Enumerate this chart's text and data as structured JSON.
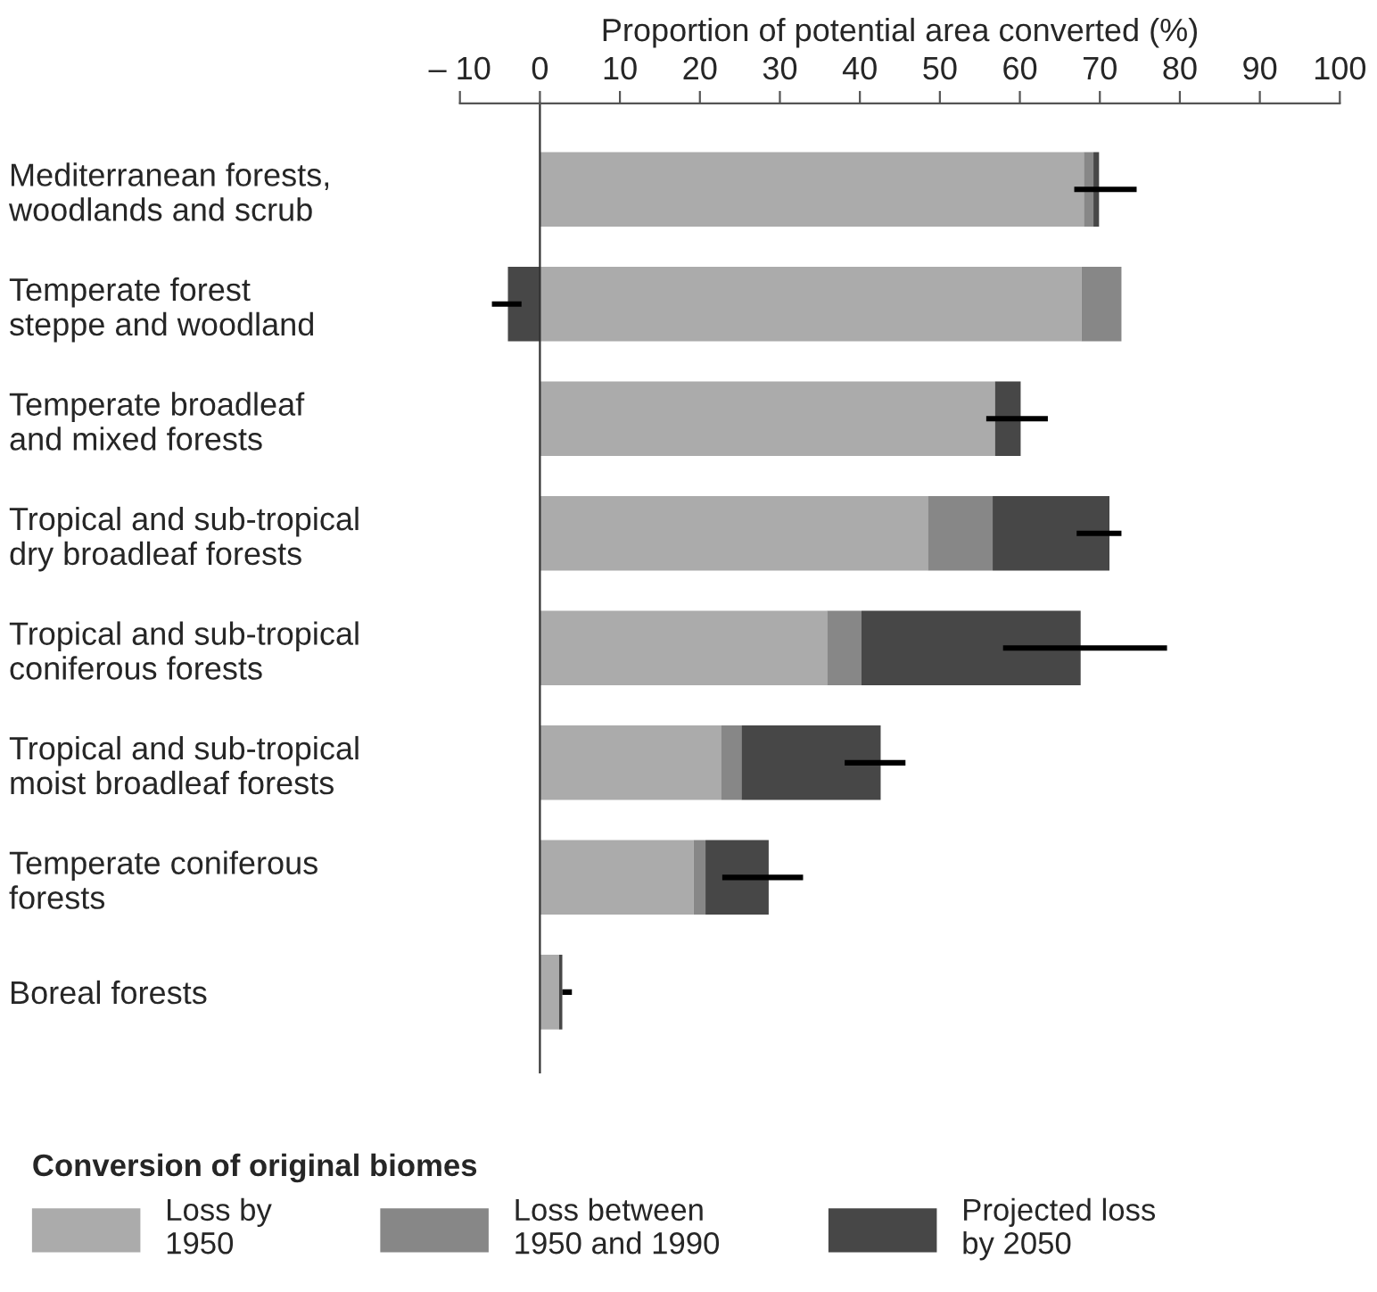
{
  "chart_data": {
    "type": "bar",
    "orientation": "horizontal",
    "stacked": true,
    "xlabel": "Proportion of potential area converted (%)",
    "legend_title": "Conversion of original biomes",
    "categories": [
      "Mediterranean forests,\nwoodlands and scrub",
      "Temperate forest\nsteppe and woodland",
      "Temperate broadleaf\nand mixed forests",
      "Tropical and sub-tropical\ndry broadleaf forests",
      "Tropical and sub-tropical\nconiferous forests",
      "Tropical and sub-tropical\nmoist broadleaf forests",
      "Temperate coniferous\nforests",
      "Boreal forests"
    ],
    "series": [
      {
        "name": "Loss by\n1950",
        "color": "#ababab",
        "values": [
          68.0,
          67.7,
          56.9,
          48.5,
          35.9,
          22.7,
          19.2,
          2.4
        ]
      },
      {
        "name": "Loss between\n1950 and 1990",
        "color": "#878787",
        "values": [
          1.2,
          5.0,
          0,
          8.1,
          4.3,
          2.5,
          1.5,
          0
        ]
      },
      {
        "name": "Projected loss\nby 2050",
        "color": "#474747",
        "values": [
          0.7,
          -4.0,
          3.2,
          14.6,
          27.4,
          17.4,
          7.9,
          0.4
        ],
        "errors": [
          [
            66.8,
            74.6
          ],
          [
            -6.0,
            -2.3
          ],
          [
            55.8,
            63.5
          ],
          [
            67.1,
            72.7
          ],
          [
            57.9,
            78.4
          ],
          [
            38.1,
            45.7
          ],
          [
            22.8,
            32.9
          ],
          [
            2.8,
            4.0
          ]
        ]
      }
    ],
    "xlim": [
      -10,
      100
    ],
    "xticks": [
      {
        "value": -10,
        "label": "– 10"
      },
      0,
      10,
      20,
      30,
      40,
      50,
      60,
      70,
      80,
      90,
      100
    ],
    "legend": "bottom"
  }
}
